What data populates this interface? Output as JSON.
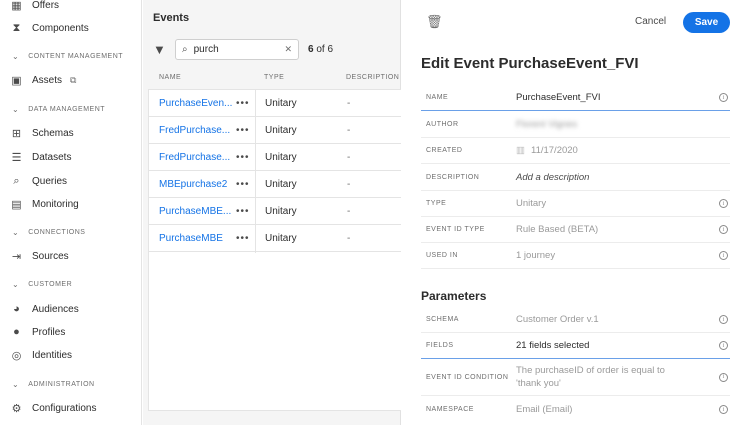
{
  "sidebar": {
    "items": [
      {
        "label": "Offers",
        "icon": "offers-icon"
      },
      {
        "label": "Components",
        "icon": "components-icon"
      },
      {
        "section": "CONTENT MANAGEMENT"
      },
      {
        "label": "Assets",
        "icon": "assets-icon"
      },
      {
        "section": "DATA MANAGEMENT"
      },
      {
        "label": "Schemas",
        "icon": "schemas-icon"
      },
      {
        "label": "Datasets",
        "icon": "datasets-icon"
      },
      {
        "label": "Queries",
        "icon": "queries-icon"
      },
      {
        "label": "Monitoring",
        "icon": "monitoring-icon"
      },
      {
        "section": "CONNECTIONS"
      },
      {
        "label": "Sources",
        "icon": "sources-icon"
      },
      {
        "section": "CUSTOMER"
      },
      {
        "label": "Audiences",
        "icon": "audiences-icon"
      },
      {
        "label": "Profiles",
        "icon": "profiles-icon"
      },
      {
        "label": "Identities",
        "icon": "identities-icon"
      },
      {
        "section": "ADMINISTRATION"
      },
      {
        "label": "Configurations",
        "icon": "configurations-icon"
      }
    ]
  },
  "events": {
    "title": "Events",
    "search_value": "purch",
    "count_current": "6",
    "count_text": "of 6",
    "columns": [
      "NAME",
      "TYPE",
      "DESCRIPTION"
    ],
    "rows": [
      {
        "name": "PurchaseEven...",
        "type": "Unitary",
        "description": "-"
      },
      {
        "name": "FredPurchase...",
        "type": "Unitary",
        "description": "-"
      },
      {
        "name": "FredPurchase...",
        "type": "Unitary",
        "description": "-"
      },
      {
        "name": "MBEpurchase2",
        "type": "Unitary",
        "description": "-"
      },
      {
        "name": "PurchaseMBE...",
        "type": "Unitary",
        "description": "-"
      },
      {
        "name": "PurchaseMBE",
        "type": "Unitary",
        "description": "-"
      }
    ]
  },
  "editor": {
    "cancel": "Cancel",
    "save": "Save",
    "title": "Edit Event PurchaseEvent_FVI",
    "fields": {
      "name": {
        "label": "NAME",
        "value": "PurchaseEvent_FVI"
      },
      "author": {
        "label": "AUTHOR",
        "value": "Florent Vignes"
      },
      "created": {
        "label": "CREATED",
        "value": "11/17/2020"
      },
      "description": {
        "label": "DESCRIPTION",
        "value": "Add a description"
      },
      "type": {
        "label": "TYPE",
        "value": "Unitary"
      },
      "event_id_type": {
        "label": "EVENT ID TYPE",
        "value": "Rule Based (BETA)"
      },
      "used_in": {
        "label": "USED IN",
        "value": "1 journey"
      }
    },
    "parameters_title": "Parameters",
    "parameters": {
      "schema": {
        "label": "SCHEMA",
        "value": "Customer Order v.1"
      },
      "fields": {
        "label": "FIELDS",
        "value": "21 fields selected"
      },
      "event_id_condition": {
        "label": "EVENT ID CONDITION",
        "value": "The purchaseID of order is equal to 'thank you'"
      },
      "namespace": {
        "label": "NAMESPACE",
        "value": "Email (Email)"
      }
    },
    "accent": "#1473e6"
  }
}
